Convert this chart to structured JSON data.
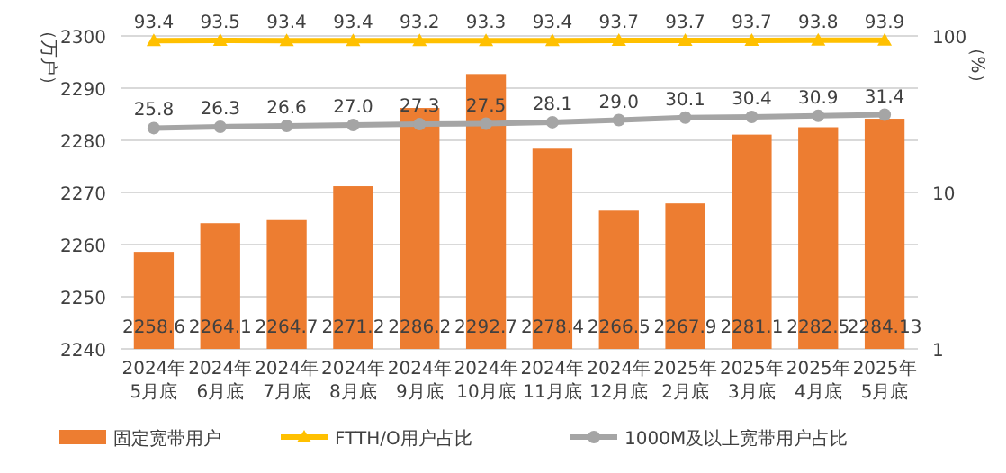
{
  "chart_data": {
    "type": "bar",
    "categories": [
      "2024年\n5月底",
      "2024年\n6月底",
      "2024年\n7月底",
      "2024年\n8月底",
      "2024年\n9月底",
      "2024年\n10月底",
      "2024年\n11月底",
      "2024年\n12月底",
      "2025年\n2月底",
      "2025年\n3月底",
      "2025年\n4月底",
      "2025年\n5月底"
    ],
    "ylabel": "（万户）",
    "y2label": "（%）",
    "ylim": [
      2240,
      2300
    ],
    "yticks": [
      2240,
      2250,
      2260,
      2270,
      2280,
      2290,
      2300
    ],
    "y2lim": [
      1,
      100
    ],
    "y2ticks": [
      1,
      10,
      100
    ],
    "log": "y2",
    "grid": "y",
    "legend": "bottom",
    "series": [
      {
        "name": "固定宽带用户",
        "color": "#ed7d31",
        "values": [
          2258.6,
          2264.1,
          2264.7,
          2271.2,
          2286.2,
          2292.7,
          2278.4,
          2266.5,
          2267.9,
          2281.1,
          2282.5,
          2284.13
        ],
        "value_labels": [
          "2258.6",
          "2264.1",
          "2264.7",
          "2271.2",
          "2286.2",
          "2292.7",
          "2278.4",
          "2266.5",
          "2267.9",
          "2281.1",
          "2282.5",
          "2284.13"
        ]
      },
      {
        "name": "FTTH/O用户占比",
        "type": "line",
        "axis": "y2",
        "marker": "triangle",
        "color": "#ffc000",
        "values": [
          93.4,
          93.5,
          93.4,
          93.4,
          93.2,
          93.3,
          93.4,
          93.7,
          93.7,
          93.7,
          93.8,
          93.9
        ],
        "value_labels": [
          "93.4",
          "93.5",
          "93.4",
          "93.4",
          "93.2",
          "93.3",
          "93.4",
          "93.7",
          "93.7",
          "93.7",
          "93.8",
          "93.9"
        ]
      },
      {
        "name": "1000M及以上宽带用户占比",
        "type": "line",
        "axis": "y2",
        "marker": "circle",
        "color": "#a5a5a5",
        "values": [
          25.8,
          26.3,
          26.6,
          27.0,
          27.3,
          27.5,
          28.1,
          29.0,
          30.1,
          30.4,
          30.9,
          31.4
        ],
        "value_labels": [
          "25.8",
          "26.3",
          "26.6",
          "27.0",
          "27.3",
          "27.5",
          "28.1",
          "29.0",
          "30.1",
          "30.4",
          "30.9",
          "31.4"
        ]
      }
    ]
  }
}
